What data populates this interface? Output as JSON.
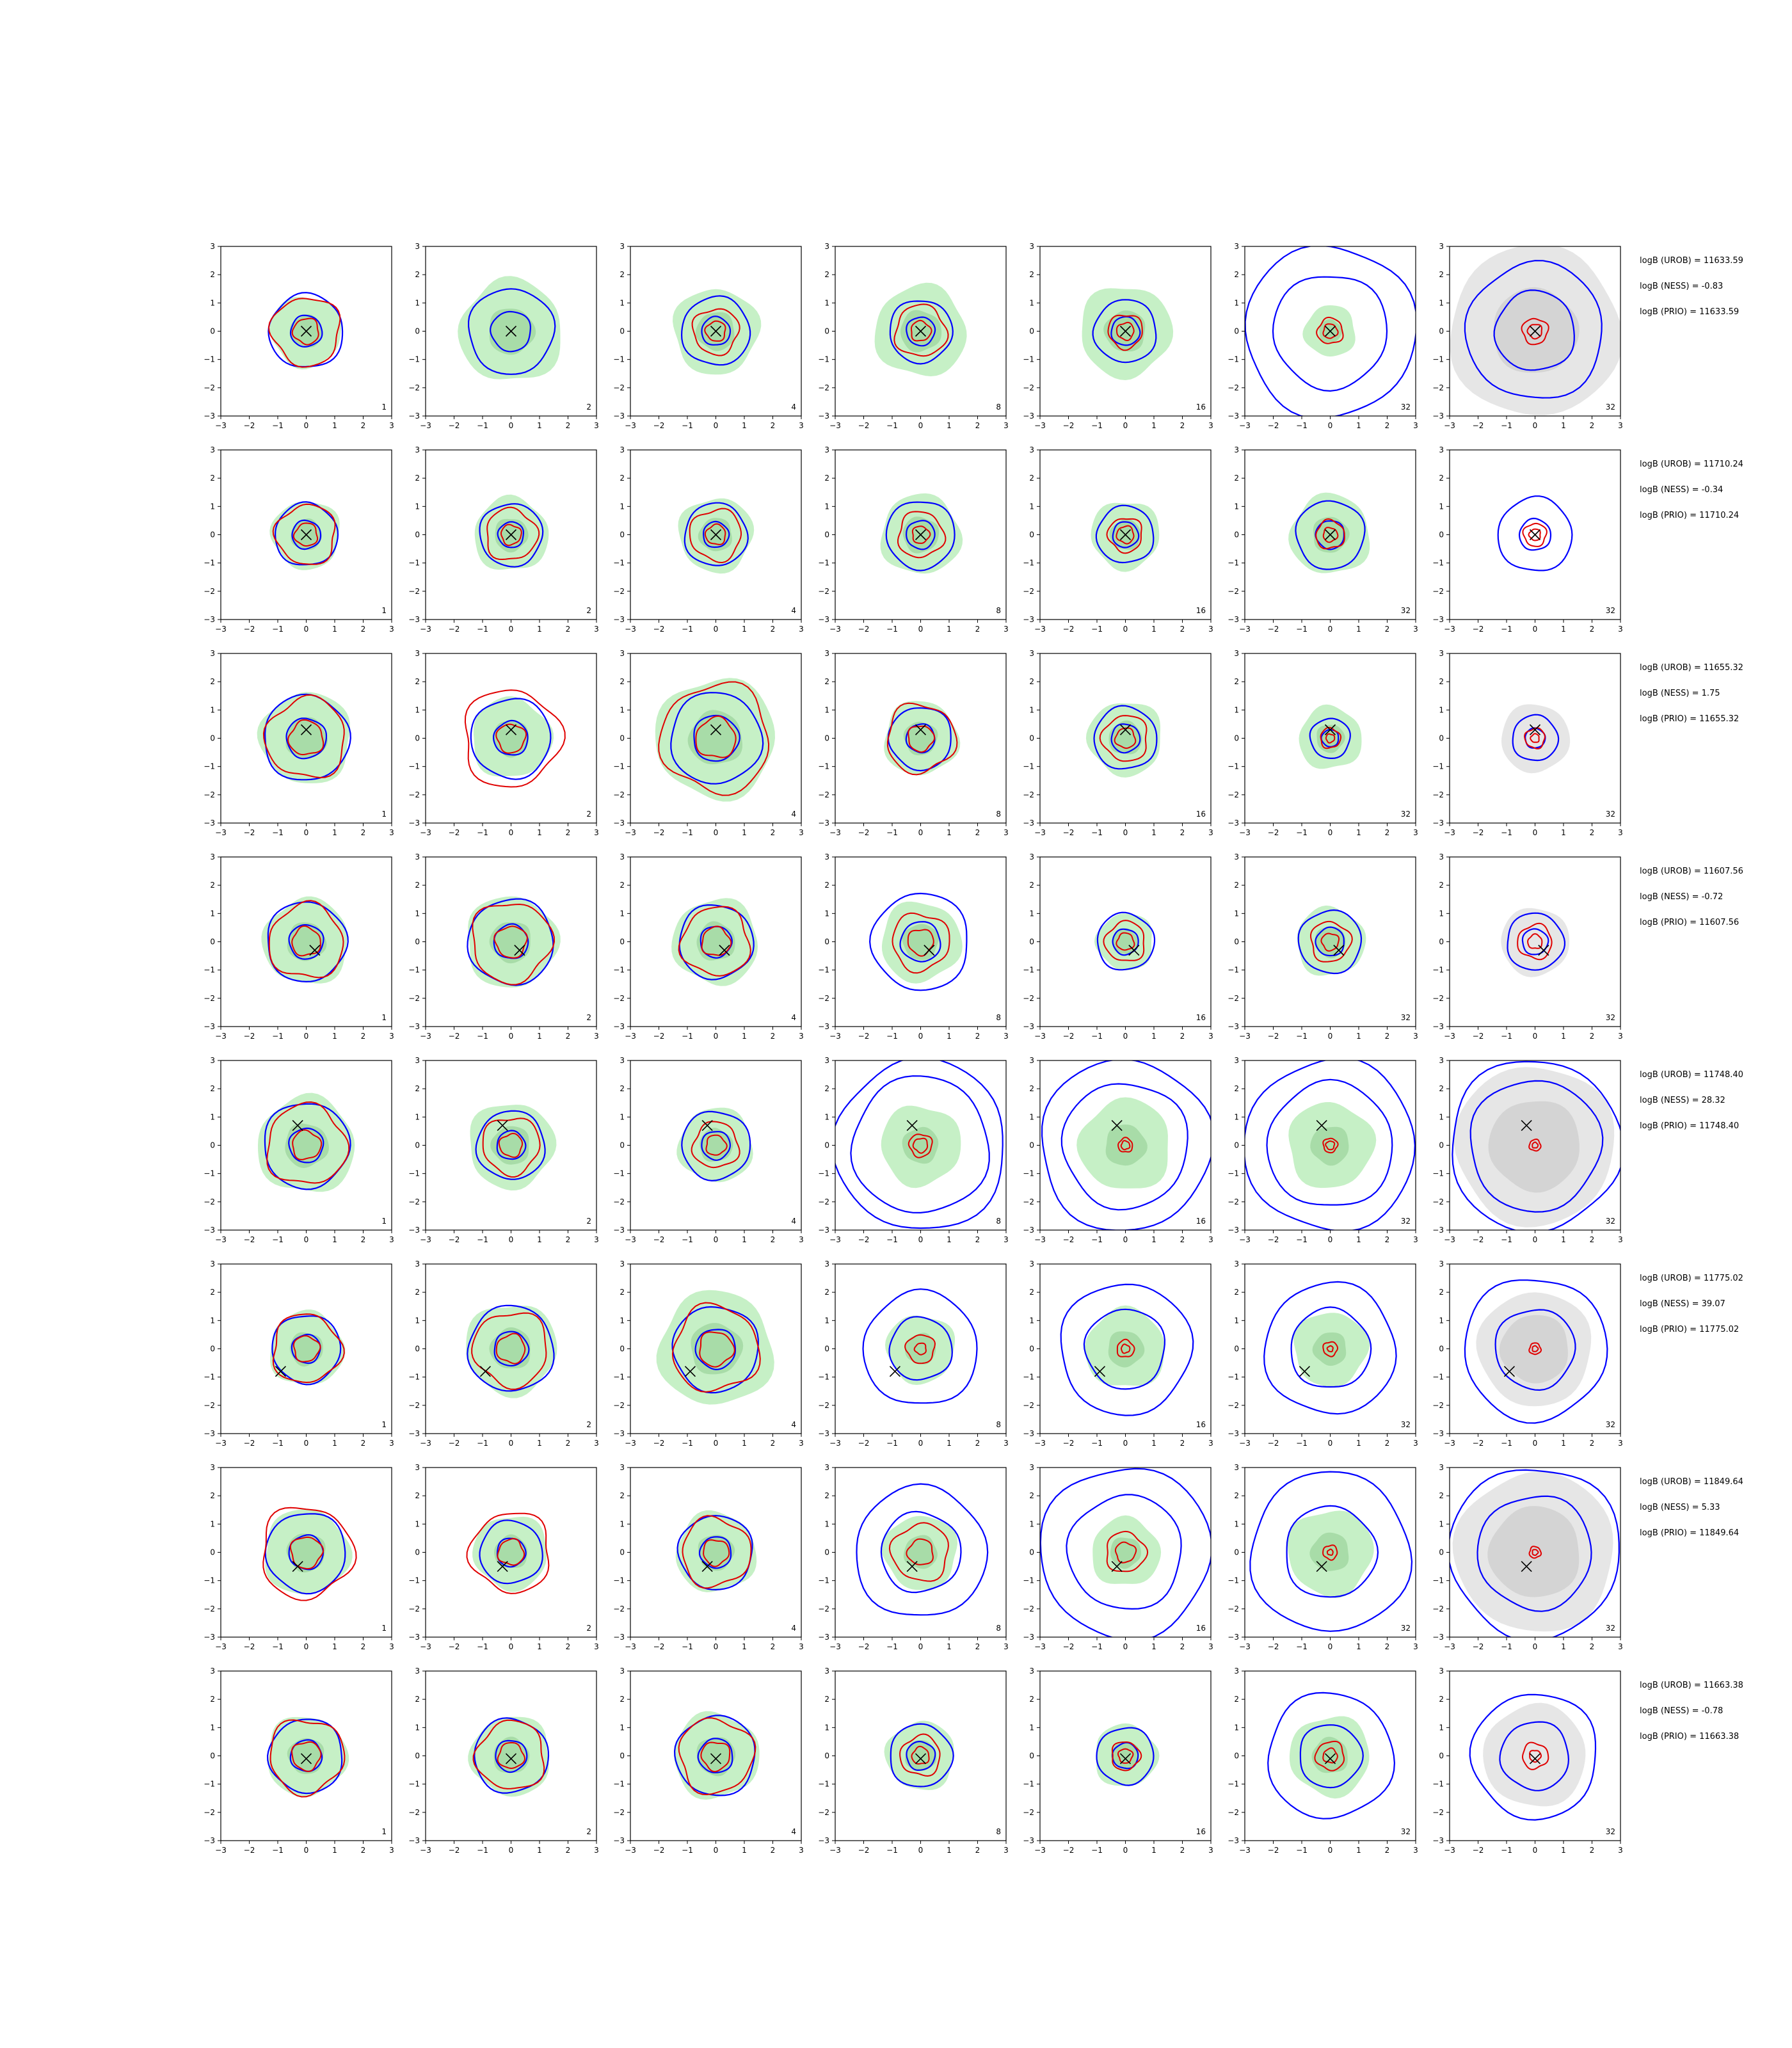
{
  "chart_data": {
    "type": "contour-grid",
    "xlim": [
      -3,
      3
    ],
    "ylim": [
      -3,
      3
    ],
    "x_ticks": [
      "−3",
      "−2",
      "−1",
      "0",
      "1",
      "2",
      "3"
    ],
    "y_ticks": [
      "3",
      "2",
      "1",
      "0",
      "−1",
      "−2",
      "−3"
    ],
    "column_labels": [
      "1",
      "2",
      "4",
      "8",
      "16",
      "32",
      "32"
    ],
    "colors": {
      "blue": "#0000ff",
      "red": "#e00000",
      "green_fill": "#c6f0c6",
      "green_inner": "#a8dca8",
      "gray_fill": "#e6e6e6",
      "gray_inner": "#d4d4d4"
    },
    "rows": [
      {
        "marker": [
          0,
          0
        ],
        "notes": [
          "logB (UROB) = 11633.59",
          "logB (NESS) = -0.83",
          "logB (PRIO) = 11633.59"
        ],
        "panels": [
          {
            "green": [
              1.25
            ],
            "blue": [
              1.3,
              0.55
            ],
            "red": [
              1.2,
              0.45
            ]
          },
          {
            "green": [
              1.8
            ],
            "blue": [
              1.5,
              0.7
            ],
            "red": []
          },
          {
            "green": [
              1.5
            ],
            "blue": [
              1.2,
              0.5
            ],
            "red": [
              0.8,
              0.35
            ]
          },
          {
            "green": [
              1.6
            ],
            "blue": [
              1.1,
              0.5
            ],
            "red": [
              0.9,
              0.35
            ]
          },
          {
            "green": [
              1.6
            ],
            "blue": [
              1.1,
              0.5
            ],
            "red": [
              0.6,
              0.3
            ]
          },
          {
            "green": [
              0.9
            ],
            "blue": [
              3.0,
              2.0
            ],
            "red": [
              0.45,
              0.25
            ]
          },
          {
            "gray": [
              3.0,
              1.5
            ],
            "blue": [
              2.4,
              1.4
            ],
            "red": [
              0.45,
              0.25
            ]
          }
        ]
      },
      {
        "marker": [
          0,
          0
        ],
        "notes": [
          "logB (UROB) = 11710.24",
          "logB (NESS) = -0.34",
          "logB (PRIO) = 11710.24"
        ],
        "panels": [
          {
            "green": [
              1.2
            ],
            "blue": [
              1.1,
              0.5
            ],
            "red": [
              1.05,
              0.4
            ]
          },
          {
            "green": [
              1.3
            ],
            "blue": [
              1.1,
              0.45
            ],
            "red": [
              0.9,
              0.35
            ]
          },
          {
            "green": [
              1.3
            ],
            "blue": [
              1.1,
              0.45
            ],
            "red": [
              0.9,
              0.35
            ]
          },
          {
            "green": [
              1.4
            ],
            "blue": [
              1.2,
              0.5
            ],
            "red": [
              0.8,
              0.3
            ]
          },
          {
            "green": [
              1.2
            ],
            "blue": [
              1.0,
              0.45
            ],
            "red": [
              0.6,
              0.3
            ]
          },
          {
            "green": [
              1.4
            ],
            "blue": [
              1.2,
              0.5
            ],
            "red": [
              0.5,
              0.25
            ]
          },
          {
            "green": [],
            "blue": [
              1.3,
              0.55
            ],
            "red": [
              0.4,
              0.2
            ]
          }
        ]
      },
      {
        "marker": [
          0,
          0.3
        ],
        "notes": [
          "logB (UROB) = 11655.32",
          "logB (NESS) = 1.75",
          "logB (PRIO) = 11655.32"
        ],
        "panels": [
          {
            "green": [
              1.6
            ],
            "blue": [
              1.5,
              0.7
            ],
            "red": [
              1.4,
              0.6
            ]
          },
          {
            "green": [
              1.4
            ],
            "blue": [
              1.4,
              0.6
            ],
            "red": [
              1.7,
              0.5
            ]
          },
          {
            "green": [
              2.1
            ],
            "blue": [
              1.6,
              0.8
            ],
            "red": [
              1.9,
              0.7
            ]
          },
          {
            "green": [
              1.3
            ],
            "blue": [
              1.1,
              0.5
            ],
            "red": [
              1.2,
              0.45
            ]
          },
          {
            "green": [
              1.3
            ],
            "blue": [
              1.1,
              0.5
            ],
            "red": [
              0.8,
              0.35
            ]
          },
          {
            "green": [
              1.1
            ],
            "blue": [
              0.7,
              0.3
            ],
            "red": [
              0.35,
              0.15
            ]
          },
          {
            "gray": [
              1.2
            ],
            "blue": [
              0.8,
              0.35
            ],
            "red": [
              0.35,
              0.15
            ]
          }
        ]
      },
      {
        "marker": [
          0.3,
          -0.3
        ],
        "notes": [
          "logB (UROB) = 11607.56",
          "logB (NESS) = -0.72",
          "logB (PRIO) = 11607.56"
        ],
        "panels": [
          {
            "green": [
              1.5
            ],
            "blue": [
              1.4,
              0.6
            ],
            "red": [
              1.3,
              0.5
            ]
          },
          {
            "green": [
              1.6
            ],
            "blue": [
              1.5,
              0.6
            ],
            "red": [
              1.4,
              0.55
            ]
          },
          {
            "green": [
              1.5
            ],
            "blue": [
              1.3,
              0.55
            ],
            "red": [
              1.2,
              0.5
            ]
          },
          {
            "green": [
              1.4
            ],
            "blue": [
              1.7,
              0.7
            ],
            "red": [
              1.0,
              0.45
            ]
          },
          {
            "green": [
              1.0
            ],
            "blue": [
              1.0,
              0.45
            ],
            "red": [
              0.7,
              0.3
            ]
          },
          {
            "green": [
              1.2
            ],
            "blue": [
              1.1,
              0.5
            ],
            "red": [
              0.7,
              0.3
            ]
          },
          {
            "gray": [
              1.2
            ],
            "blue": [
              1.0,
              0.45
            ],
            "red": [
              0.6,
              0.25
            ]
          }
        ]
      },
      {
        "marker": [
          -0.3,
          0.7
        ],
        "notes": [
          "logB (UROB) = 11748.40",
          "logB (NESS) = 28.32",
          "logB (PRIO) = 11748.40"
        ],
        "panels": [
          {
            "green": [
              1.7
            ],
            "blue": [
              1.5,
              0.6
            ],
            "red": [
              1.4,
              0.5
            ]
          },
          {
            "green": [
              1.5
            ],
            "blue": [
              1.2,
              0.5
            ],
            "red": [
              1.0,
              0.4
            ]
          },
          {
            "green": [
              1.3
            ],
            "blue": [
              1.2,
              0.5
            ],
            "red": [
              0.8,
              0.35
            ]
          },
          {
            "green": [
              1.4
            ],
            "blue": [
              3.0,
              2.4
            ],
            "red": [
              0.4,
              0.25
            ]
          },
          {
            "green": [
              1.6
            ],
            "blue": [
              3.0,
              2.2
            ],
            "red": [
              0.25,
              0.15
            ]
          },
          {
            "green": [
              1.5
            ],
            "blue": [
              3.0,
              2.2
            ],
            "red": [
              0.25,
              0.15
            ]
          },
          {
            "gray": [
              2.8,
              1.6
            ],
            "blue": [
              3.0,
              2.3
            ],
            "red": [
              0.2,
              0.1
            ]
          }
        ]
      },
      {
        "marker": [
          -0.9,
          -0.8
        ],
        "notes": [
          "logB (UROB) = 11775.02",
          "logB (NESS) = 39.07",
          "logB (PRIO) = 11775.02"
        ],
        "panels": [
          {
            "green": [
              1.3
            ],
            "blue": [
              1.2,
              0.5
            ],
            "red": [
              1.2,
              0.45
            ]
          },
          {
            "green": [
              1.6
            ],
            "blue": [
              1.5,
              0.6
            ],
            "red": [
              1.3,
              0.5
            ]
          },
          {
            "green": [
              2.0
            ],
            "blue": [
              1.5,
              0.7
            ],
            "red": [
              1.5,
              0.6
            ]
          },
          {
            "green": [
              1.2
            ],
            "blue": [
              2.0,
              1.1
            ],
            "red": [
              0.5,
              0.2
            ]
          },
          {
            "green": [
              1.4
            ],
            "blue": [
              2.3,
              1.4
            ],
            "red": [
              0.3,
              0.15
            ]
          },
          {
            "green": [
              1.3
            ],
            "blue": [
              2.3,
              1.4
            ],
            "red": [
              0.25,
              0.1
            ]
          },
          {
            "gray": [
              2.0,
              1.2
            ],
            "blue": [
              2.5,
              1.4
            ],
            "red": [
              0.2,
              0.1
            ]
          }
        ]
      },
      {
        "marker": [
          -0.3,
          -0.5
        ],
        "notes": [
          "logB (UROB) = 11849.64",
          "logB (NESS) = 5.33",
          "logB (PRIO) = 11849.64"
        ],
        "panels": [
          {
            "green": [
              1.5
            ],
            "blue": [
              1.4,
              0.6
            ],
            "red": [
              1.6,
              0.55
            ]
          },
          {
            "green": [
              1.3
            ],
            "blue": [
              1.1,
              0.5
            ],
            "red": [
              1.4,
              0.45
            ]
          },
          {
            "green": [
              1.4
            ],
            "blue": [
              1.3,
              0.55
            ],
            "red": [
              1.2,
              0.45
            ]
          },
          {
            "green": [
              1.3
            ],
            "blue": [
              2.3,
              1.4
            ],
            "red": [
              1.0,
              0.45
            ]
          },
          {
            "green": [
              1.2
            ],
            "blue": [
              3.0,
              2.0
            ],
            "red": [
              0.7,
              0.35
            ]
          },
          {
            "green": [
              1.5
            ],
            "blue": [
              2.8,
              1.6
            ],
            "red": [
              0.25,
              0.1
            ]
          },
          {
            "gray": [
              2.8,
              1.6
            ],
            "blue": [
              3.0,
              2.0
            ],
            "red": [
              0.2,
              0.1
            ]
          }
        ]
      },
      {
        "marker": [
          0,
          -0.1
        ],
        "notes": [
          "logB (UROB) = 11663.38",
          "logB (NESS) = -0.78",
          "logB (PRIO) = 11663.38"
        ],
        "panels": [
          {
            "green": [
              1.4
            ],
            "blue": [
              1.3,
              0.55
            ],
            "red": [
              1.3,
              0.5
            ]
          },
          {
            "green": [
              1.4
            ],
            "blue": [
              1.3,
              0.55
            ],
            "red": [
              1.2,
              0.45
            ]
          },
          {
            "green": [
              1.5
            ],
            "blue": [
              1.4,
              0.6
            ],
            "red": [
              1.3,
              0.5
            ]
          },
          {
            "green": [
              1.2
            ],
            "blue": [
              1.1,
              0.5
            ],
            "red": [
              0.7,
              0.3
            ]
          },
          {
            "green": [
              1.1
            ],
            "blue": [
              1.0,
              0.45
            ],
            "red": [
              0.5,
              0.25
            ]
          },
          {
            "green": [
              1.4
            ],
            "blue": [
              2.2,
              1.1
            ],
            "red": [
              0.5,
              0.25
            ]
          },
          {
            "gray": [
              1.8
            ],
            "blue": [
              2.2,
              1.2
            ],
            "red": [
              0.45,
              0.2
            ]
          }
        ]
      }
    ]
  }
}
